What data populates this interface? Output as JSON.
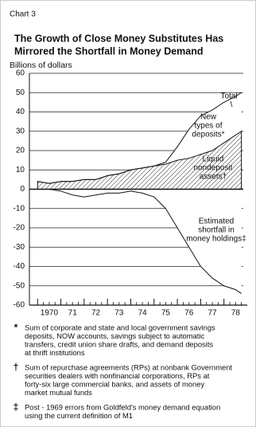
{
  "chart_data": {
    "type": "area-line",
    "label": "Chart 3",
    "title": [
      "The Growth of Close Money Substitutes Has",
      "Mirrored the Shortfall in Money Demand"
    ],
    "y_label": "Billions of dollars",
    "x": [
      1970,
      1970.5,
      1971,
      1971.5,
      1972,
      1972.5,
      1973,
      1973.5,
      1974,
      1974.5,
      1975,
      1975.5,
      1976,
      1976.5,
      1977,
      1977.5,
      1978,
      1978.5,
      1978.75
    ],
    "series": [
      {
        "label_lines": [
          "Total"
        ],
        "color": "#111111",
        "values": [
          4,
          3,
          4,
          4,
          5,
          5,
          7,
          8,
          10,
          11,
          12,
          14,
          22,
          31,
          38,
          41,
          45,
          48,
          50
        ]
      },
      {
        "label_lines": [
          "Liquid",
          "nondeposit",
          "assets†"
        ],
        "color": "#111111",
        "values": [
          4,
          3,
          4,
          4,
          5,
          5,
          7,
          8,
          10,
          11,
          12,
          13,
          15,
          16,
          18,
          20,
          24,
          28,
          30
        ]
      },
      {
        "label_lines": [
          "Estimated",
          "shortfall in",
          "money holdings‡"
        ],
        "color": "#111111",
        "values": [
          0,
          0,
          -1,
          -3,
          -4,
          -3,
          -2,
          -2,
          -1,
          -2,
          -4,
          -10,
          -20,
          -30,
          -40,
          -46,
          -50,
          -52,
          -54
        ]
      }
    ],
    "annotation_lines": [
      "New",
      "types of",
      "deposits*"
    ],
    "xlim": [
      1969.65,
      1979.0
    ],
    "xticks": [
      {
        "value": 1970,
        "label": "1970"
      },
      {
        "value": 1971,
        "label": "71"
      },
      {
        "value": 1972,
        "label": "72"
      },
      {
        "value": 1973,
        "label": "73"
      },
      {
        "value": 1974,
        "label": "74"
      },
      {
        "value": 1975,
        "label": "75"
      },
      {
        "value": 1976,
        "label": "76"
      },
      {
        "value": 1977,
        "label": "77"
      },
      {
        "value": 1978,
        "label": "78"
      }
    ],
    "ylim": [
      -60,
      60
    ],
    "yticks": [
      60,
      50,
      40,
      30,
      20,
      10,
      0,
      -10,
      -20,
      -30,
      -40,
      -50,
      -60
    ],
    "grid": true
  },
  "footnotes": [
    {
      "mark": "*",
      "lines": [
        "Sum of corporate and state and local government savings",
        "deposits, NOW accounts, savings subject to automatic",
        "transfers, credit union share drafts, and demand deposits",
        "at thrift institutions"
      ]
    },
    {
      "mark": "†",
      "lines": [
        "Sum of repurchase agreements (RPs) at nonbank Government",
        "securities dealers with nonfinancial corporations, RPs at",
        "forty-six large commercial banks, and assets of money",
        "market mutual funds"
      ]
    },
    {
      "mark": "‡",
      "lines": [
        "Post - 1969 errors from Goldfeld's money demand equation",
        "using the current definition of M1"
      ]
    }
  ]
}
